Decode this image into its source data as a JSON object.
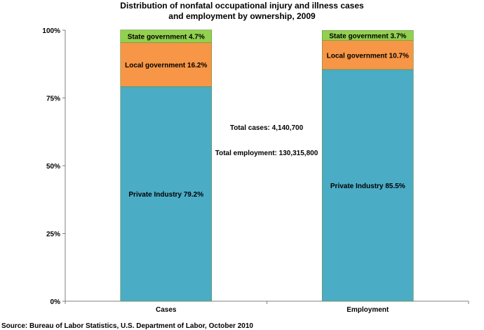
{
  "chart_data": {
    "type": "bar",
    "stacked": true,
    "title_lines": [
      "Distribution of nonfatal occupational injury and illness cases",
      "and employment by ownership, 2009"
    ],
    "categories": [
      "Cases",
      "Employment"
    ],
    "series": [
      {
        "name": "Private Industry",
        "values": [
          79.2,
          85.5
        ],
        "color": "#4bacc6",
        "labels": [
          "Private Industry 79.2%",
          "Private Industry 85.5%"
        ]
      },
      {
        "name": "Local government",
        "values": [
          16.2,
          10.7
        ],
        "color": "#f79646",
        "labels": [
          "Local government 16.2%",
          "Local government 10.7%"
        ]
      },
      {
        "name": "State government",
        "values": [
          4.7,
          3.7
        ],
        "color": "#92d050",
        "labels": [
          "State government 4.7%",
          "State government 3.7%"
        ]
      }
    ],
    "ylim": [
      0,
      100
    ],
    "yticks": [
      0,
      25,
      50,
      75,
      100
    ],
    "ytick_labels": [
      "0%",
      "25%",
      "50%",
      "75%",
      "100%"
    ],
    "grid": false,
    "legend": "none",
    "annotations": [
      "Total cases: 4,140,700",
      "Total employment: 130,315,800"
    ]
  },
  "source": "Source:  Bureau of Labor Statistics, U.S. Department of Labor, October 2010"
}
